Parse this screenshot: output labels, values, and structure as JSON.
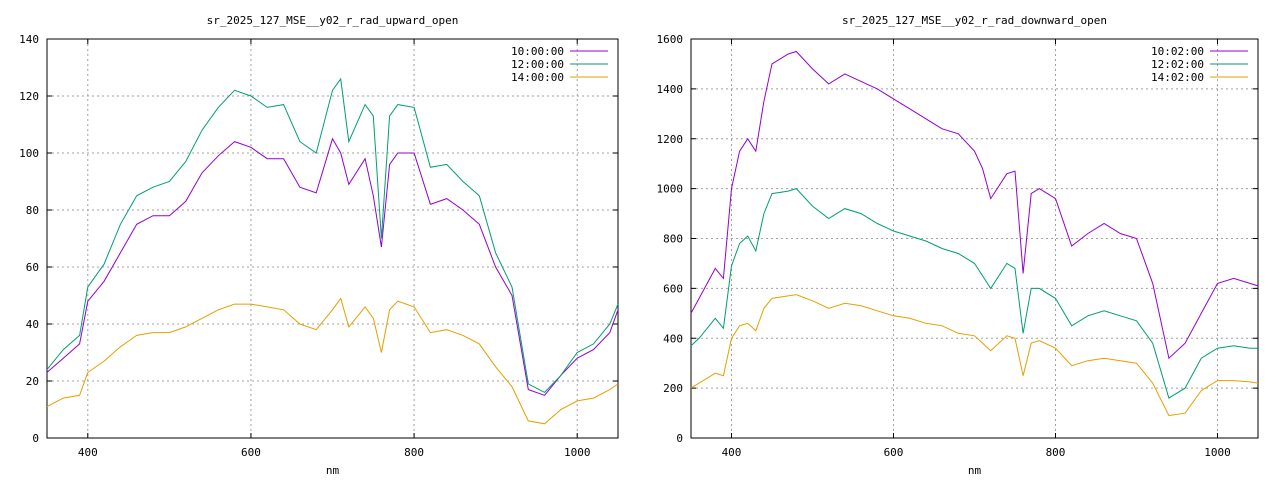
{
  "colors": {
    "series1": "#9400d3",
    "series2": "#009e73",
    "series3": "#e69f00"
  },
  "chart_data": [
    {
      "type": "line",
      "title": "sr_2025_127_MSE__y02_r_rad_upward_open",
      "xlabel": "nm",
      "ylabel": "",
      "xlim": [
        350,
        1050
      ],
      "ylim": [
        0,
        140
      ],
      "xticks": [
        400,
        600,
        800,
        1000
      ],
      "yticks": [
        0,
        20,
        40,
        60,
        80,
        100,
        120,
        140
      ],
      "grid": true,
      "legend": "top-right",
      "series": [
        {
          "name": "10:00:00",
          "x": [
            350,
            370,
            390,
            400,
            420,
            440,
            460,
            480,
            500,
            520,
            540,
            560,
            580,
            600,
            620,
            640,
            660,
            680,
            700,
            710,
            720,
            740,
            750,
            760,
            770,
            780,
            800,
            820,
            840,
            860,
            880,
            900,
            920,
            940,
            960,
            980,
            1000,
            1020,
            1040,
            1050
          ],
          "y": [
            23,
            28,
            33,
            48,
            55,
            65,
            75,
            78,
            78,
            83,
            93,
            99,
            104,
            102,
            98,
            98,
            88,
            86,
            105,
            100,
            89,
            98,
            85,
            67,
            96,
            100,
            100,
            82,
            84,
            80,
            75,
            60,
            50,
            17,
            15,
            22,
            28,
            31,
            37,
            45
          ]
        },
        {
          "name": "12:00:00",
          "x": [
            350,
            370,
            390,
            400,
            420,
            440,
            460,
            480,
            500,
            520,
            540,
            560,
            580,
            600,
            620,
            640,
            660,
            680,
            700,
            710,
            720,
            740,
            750,
            760,
            770,
            780,
            800,
            820,
            840,
            860,
            880,
            900,
            920,
            940,
            960,
            980,
            1000,
            1020,
            1040,
            1050
          ],
          "y": [
            24,
            31,
            36,
            53,
            61,
            75,
            85,
            88,
            90,
            97,
            108,
            116,
            122,
            120,
            116,
            117,
            104,
            100,
            122,
            126,
            104,
            117,
            113,
            70,
            113,
            117,
            116,
            95,
            96,
            90,
            85,
            65,
            53,
            19,
            16,
            22,
            30,
            33,
            40,
            47
          ]
        },
        {
          "name": "14:00:00",
          "x": [
            350,
            370,
            390,
            400,
            420,
            440,
            460,
            480,
            500,
            520,
            540,
            560,
            580,
            600,
            620,
            640,
            660,
            680,
            700,
            710,
            720,
            740,
            750,
            760,
            770,
            780,
            800,
            820,
            840,
            860,
            880,
            900,
            920,
            940,
            960,
            980,
            1000,
            1020,
            1040,
            1050
          ],
          "y": [
            11,
            14,
            15,
            23,
            27,
            32,
            36,
            37,
            37,
            39,
            42,
            45,
            47,
            47,
            46,
            45,
            40,
            38,
            45,
            49,
            39,
            46,
            42,
            30,
            45,
            48,
            46,
            37,
            38,
            36,
            33,
            25,
            18,
            6,
            5,
            10,
            13,
            14,
            17,
            19
          ]
        }
      ]
    },
    {
      "type": "line",
      "title": "sr_2025_127_MSE__y02_r_rad_downward_open",
      "xlabel": "nm",
      "ylabel": "",
      "xlim": [
        350,
        1050
      ],
      "ylim": [
        0,
        1600
      ],
      "xticks": [
        400,
        600,
        800,
        1000
      ],
      "yticks": [
        0,
        200,
        400,
        600,
        800,
        1000,
        1200,
        1400,
        1600
      ],
      "grid": true,
      "legend": "top-right",
      "series": [
        {
          "name": "10:02:00",
          "x": [
            350,
            360,
            380,
            390,
            400,
            410,
            420,
            430,
            440,
            450,
            470,
            480,
            500,
            520,
            540,
            560,
            580,
            600,
            620,
            640,
            660,
            680,
            700,
            710,
            720,
            740,
            750,
            760,
            770,
            780,
            800,
            820,
            840,
            860,
            880,
            900,
            920,
            940,
            960,
            980,
            1000,
            1020,
            1040,
            1050
          ],
          "y": [
            500,
            560,
            680,
            640,
            1000,
            1150,
            1200,
            1150,
            1350,
            1500,
            1540,
            1550,
            1480,
            1420,
            1460,
            1430,
            1400,
            1360,
            1320,
            1280,
            1240,
            1220,
            1150,
            1080,
            960,
            1060,
            1070,
            660,
            980,
            1000,
            960,
            770,
            820,
            860,
            820,
            800,
            620,
            320,
            380,
            500,
            620,
            640,
            620,
            610
          ]
        },
        {
          "name": "12:02:00",
          "x": [
            350,
            360,
            380,
            390,
            400,
            410,
            420,
            430,
            440,
            450,
            470,
            480,
            500,
            520,
            540,
            560,
            580,
            600,
            620,
            640,
            660,
            680,
            700,
            710,
            720,
            740,
            750,
            760,
            770,
            780,
            800,
            820,
            840,
            860,
            880,
            900,
            920,
            940,
            960,
            980,
            1000,
            1020,
            1040,
            1050
          ],
          "y": [
            370,
            400,
            480,
            440,
            690,
            780,
            810,
            750,
            900,
            980,
            990,
            1000,
            930,
            880,
            920,
            900,
            860,
            830,
            810,
            790,
            760,
            740,
            700,
            650,
            600,
            700,
            680,
            420,
            600,
            600,
            560,
            450,
            490,
            510,
            490,
            470,
            380,
            160,
            200,
            320,
            360,
            370,
            360,
            360
          ]
        },
        {
          "name": "14:02:00",
          "x": [
            350,
            360,
            380,
            390,
            400,
            410,
            420,
            430,
            440,
            450,
            470,
            480,
            500,
            520,
            540,
            560,
            580,
            600,
            620,
            640,
            660,
            680,
            700,
            710,
            720,
            740,
            750,
            760,
            770,
            780,
            800,
            820,
            840,
            860,
            880,
            900,
            920,
            940,
            960,
            980,
            1000,
            1020,
            1040,
            1050
          ],
          "y": [
            200,
            220,
            260,
            250,
            400,
            450,
            460,
            430,
            520,
            560,
            570,
            575,
            550,
            520,
            540,
            530,
            510,
            490,
            480,
            460,
            450,
            420,
            410,
            380,
            350,
            410,
            400,
            250,
            380,
            390,
            360,
            290,
            310,
            320,
            310,
            300,
            220,
            90,
            100,
            190,
            230,
            230,
            225,
            220
          ]
        }
      ]
    }
  ]
}
